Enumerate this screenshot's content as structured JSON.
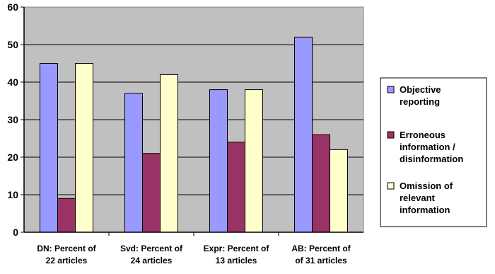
{
  "chart_data": {
    "type": "bar",
    "categories": [
      [
        "DN: Percent of",
        "22 articles"
      ],
      [
        "Svd: Percent of",
        "24 articles"
      ],
      [
        "Expr: Percent of",
        "13 articles"
      ],
      [
        "AB: Percent of",
        "of 31 articles"
      ]
    ],
    "series": [
      {
        "name": [
          "Objective",
          "reporting"
        ],
        "values": [
          45,
          37,
          38,
          52
        ],
        "color": "#9999ff"
      },
      {
        "name": [
          "Erroneous",
          "information /",
          "disinformation"
        ],
        "values": [
          9,
          21,
          24,
          26
        ],
        "color": "#993366"
      },
      {
        "name": [
          "Omission of",
          "relevant",
          "information"
        ],
        "values": [
          45,
          42,
          38,
          22
        ],
        "color": "#ffffcc"
      }
    ],
    "ylim": [
      0,
      60
    ],
    "yticks": [
      0,
      10,
      20,
      30,
      40,
      50,
      60
    ],
    "plot_background": "#c0c0c0",
    "grid": true,
    "legend_position": "right"
  }
}
